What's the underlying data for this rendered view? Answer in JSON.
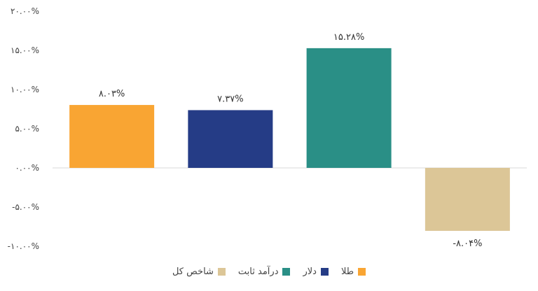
{
  "chart_data": {
    "type": "bar",
    "categories": [
      "طلا",
      "دلار",
      "درآمد ثابت",
      "شاخص کل"
    ],
    "values": [
      8.03,
      7.37,
      15.28,
      -8.04
    ],
    "value_labels": [
      "۸.۰۳%",
      "۷.۳۷%",
      "۱۵.۲۸%",
      "-۸.۰۴%"
    ],
    "colors": [
      "#F9A533",
      "#253C86",
      "#2A8F86",
      "#DCC697"
    ],
    "ylim": [
      -10,
      20
    ],
    "yticks": [
      20,
      15,
      10,
      5,
      0,
      -5,
      -10
    ],
    "ytick_labels": [
      "۲۰.۰۰%",
      "۱۵.۰۰%",
      "۱۰.۰۰%",
      "۵.۰۰%",
      "۰.۰۰%",
      "-۵.۰۰%",
      "-۱۰.۰۰%"
    ],
    "grid": false,
    "legend_position": "bottom",
    "title": "",
    "xlabel": "",
    "ylabel": ""
  }
}
